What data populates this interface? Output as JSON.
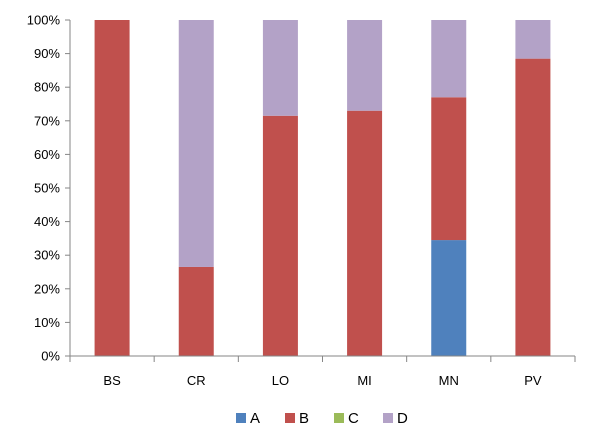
{
  "chart_data": {
    "type": "bar",
    "stacked": true,
    "percent": true,
    "categories": [
      "BS",
      "CR",
      "LO",
      "MI",
      "MN",
      "PV"
    ],
    "series": [
      {
        "name": "A",
        "color": "#4F81BD",
        "values": [
          0,
          0,
          0,
          0,
          34.5,
          0
        ]
      },
      {
        "name": "B",
        "color": "#C0504D",
        "values": [
          100,
          26.5,
          71.5,
          73,
          42.5,
          88.5
        ]
      },
      {
        "name": "C",
        "color": "#9BBB59",
        "values": [
          0,
          0,
          0,
          0,
          0,
          0
        ]
      },
      {
        "name": "D",
        "color": "#B3A2C7",
        "values": [
          0,
          73.5,
          28.5,
          27,
          23,
          11.5
        ]
      }
    ],
    "yticks": [
      "0%",
      "10%",
      "20%",
      "30%",
      "40%",
      "50%",
      "60%",
      "70%",
      "80%",
      "90%",
      "100%"
    ],
    "ylim": [
      0,
      100
    ],
    "grid": false,
    "legend": "bottom",
    "title": "",
    "xlabel": "",
    "ylabel": ""
  }
}
